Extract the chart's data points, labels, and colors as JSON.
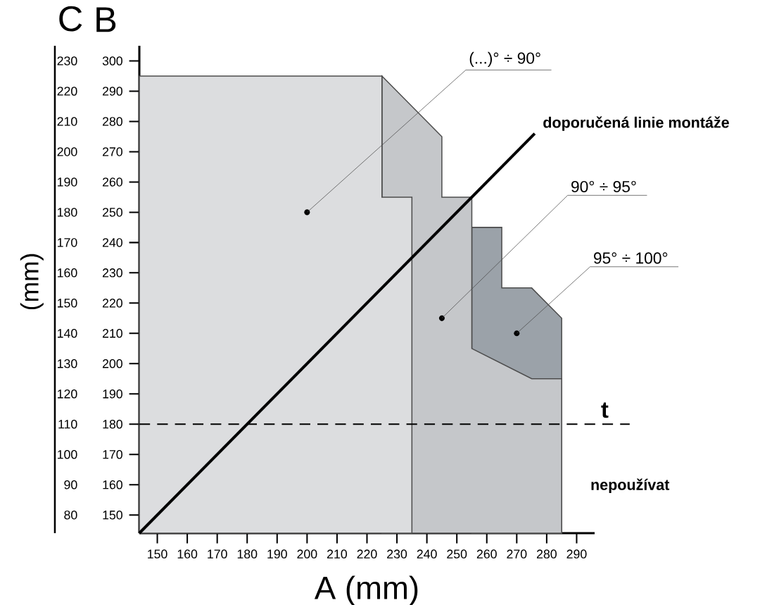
{
  "chart_data": {
    "type": "area",
    "xlabel": "A (mm)",
    "ylabel": "B",
    "y2label": "C",
    "xlim": [
      144,
      296
    ],
    "xticks": [
      150,
      160,
      170,
      180,
      190,
      200,
      210,
      220,
      230,
      240,
      250,
      260,
      270,
      280,
      290
    ],
    "ylim": [
      144,
      305
    ],
    "yticks": [
      150,
      160,
      170,
      180,
      190,
      200,
      210,
      220,
      230,
      240,
      250,
      260,
      270,
      280,
      290,
      300
    ],
    "y2lim": [
      74,
      235
    ],
    "y2ticks": [
      80,
      90,
      100,
      110,
      120,
      130,
      140,
      150,
      160,
      170,
      180,
      190,
      200,
      210,
      220,
      230
    ],
    "series": [
      {
        "color": "#9ba2a9",
        "x": [
          255,
          265,
          265,
          275,
          285
        ],
        "values": [
          245,
          245,
          225,
          225,
          215
        ]
      },
      {
        "color": "#c5c7ca",
        "x": [
          225,
          245,
          245,
          255,
          255,
          275,
          285
        ],
        "values": [
          295,
          275,
          255,
          255,
          205,
          195,
          195
        ]
      },
      {
        "color": "#dcdddf",
        "x": [
          144,
          225,
          225,
          235
        ],
        "values": [
          295,
          295,
          255,
          255
        ]
      },
      {
        "type": "line",
        "name": "doporučená linie montáže",
        "color": "#000000",
        "x": [
          144,
          276
        ],
        "values": [
          144,
          276
        ]
      }
    ],
    "ref_lines": [
      {
        "axis": "y",
        "value": 180,
        "label": "t",
        "line_style": "dashed"
      }
    ],
    "annotations": [
      {
        "text": "(...)° ÷ 90°",
        "x": 200,
        "y": 250
      },
      {
        "text": "90° ÷ 95°",
        "x": 245,
        "y": 215
      },
      {
        "text": "95° ÷ 100°",
        "x": 270,
        "y": 210
      },
      "(mm)",
      "nepoužívat"
    ],
    "legend": false,
    "grid": false
  }
}
